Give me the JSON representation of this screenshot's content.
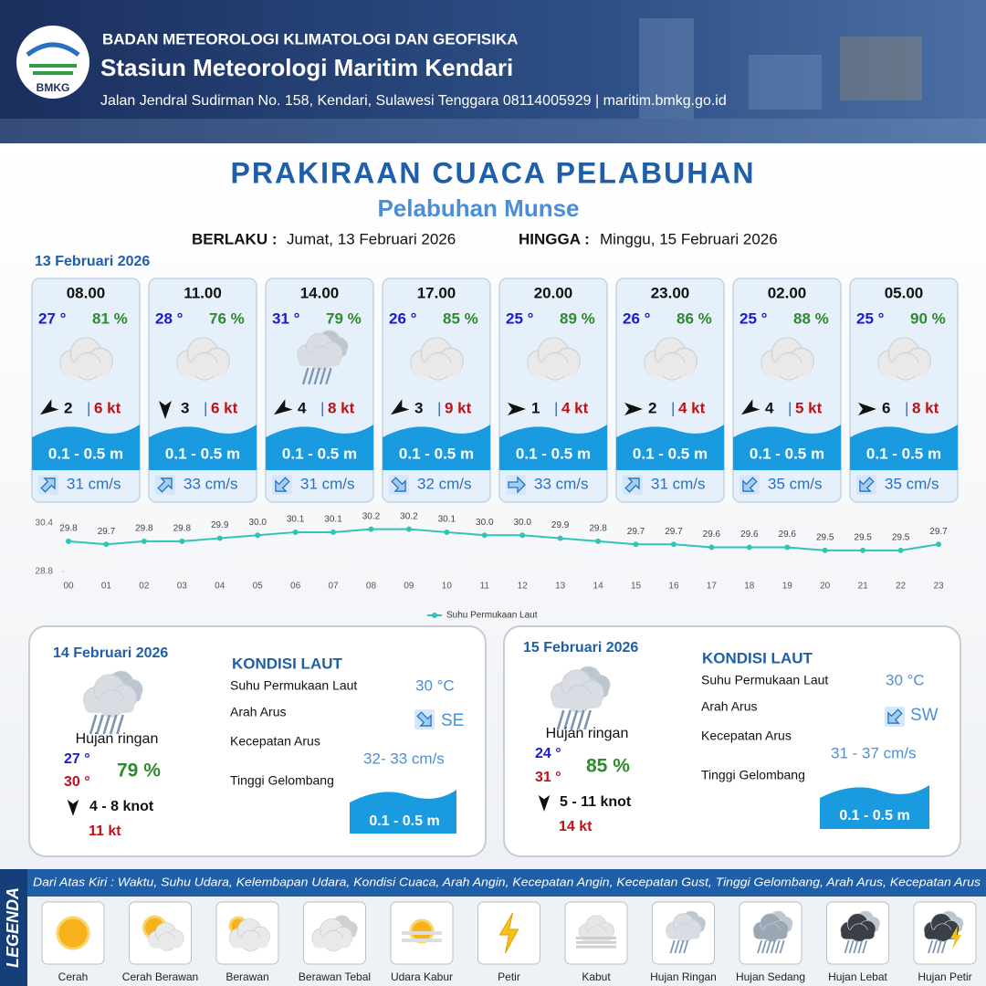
{
  "header": {
    "logo": "BMKG",
    "agency": "BADAN METEOROLOGI KLIMATOLOGI DAN GEOFISIKA",
    "station": "Stasiun Meteorologi Maritim Kendari",
    "address": "Jalan Jendral Sudirman No. 158, Kendari, Sulawesi Tenggara  08114005929 | maritim.bmkg.go.id"
  },
  "title": "PRAKIRAAN CUACA PELABUHAN",
  "subtitle": "Pelabuhan Munse",
  "validity": {
    "from_label": "BERLAKU :",
    "from": "Jumat, 13 Februari 2026",
    "to_label": "HINGGA :",
    "to": "Minggu, 15 Februari 2026"
  },
  "day1": {
    "date": "13 Februari 2026",
    "slots": [
      {
        "time": "08.00",
        "temp": "27 °",
        "humidity": "81 %",
        "wind": "2",
        "gust": "6 kt",
        "wave": "0.1 - 0.5 m",
        "current": "31 cm/s"
      },
      {
        "time": "11.00",
        "temp": "28 °",
        "humidity": "76 %",
        "wind": "3",
        "gust": "6 kt",
        "wave": "0.1 - 0.5 m",
        "current": "33 cm/s"
      },
      {
        "time": "14.00",
        "temp": "31 °",
        "humidity": "79 %",
        "wind": "4",
        "gust": "8 kt",
        "wave": "0.1 - 0.5 m",
        "current": "31 cm/s"
      },
      {
        "time": "17.00",
        "temp": "26 °",
        "humidity": "85 %",
        "wind": "3",
        "gust": "9 kt",
        "wave": "0.1 - 0.5 m",
        "current": "32 cm/s"
      },
      {
        "time": "20.00",
        "temp": "25 °",
        "humidity": "89 %",
        "wind": "1",
        "gust": "4 kt",
        "wave": "0.1 - 0.5 m",
        "current": "33 cm/s"
      },
      {
        "time": "23.00",
        "temp": "26 °",
        "humidity": "86 %",
        "wind": "2",
        "gust": "4 kt",
        "wave": "0.1 - 0.5 m",
        "current": "31 cm/s"
      },
      {
        "time": "02.00",
        "temp": "25 °",
        "humidity": "88 %",
        "wind": "4",
        "gust": "5 kt",
        "wave": "0.1 - 0.5 m",
        "current": "35 cm/s"
      },
      {
        "time": "05.00",
        "temp": "25 °",
        "humidity": "90 %",
        "wind": "6",
        "gust": "8 kt",
        "wave": "0.1 - 0.5 m",
        "current": "35 cm/s"
      }
    ]
  },
  "chart_data": {
    "type": "line",
    "categories": [
      "00",
      "01",
      "02",
      "03",
      "04",
      "05",
      "06",
      "07",
      "08",
      "09",
      "10",
      "11",
      "12",
      "13",
      "14",
      "15",
      "16",
      "17",
      "18",
      "19",
      "20",
      "21",
      "22",
      "23"
    ],
    "series": [
      {
        "name": "Suhu Permukaan Laut",
        "color": "#2ec4b6",
        "values": [
          29.8,
          29.7,
          29.8,
          29.8,
          29.9,
          30.0,
          30.1,
          30.1,
          30.2,
          30.2,
          30.1,
          30.0,
          30.0,
          29.9,
          29.8,
          29.7,
          29.7,
          29.6,
          29.6,
          29.6,
          29.5,
          29.5,
          29.5,
          29.7
        ],
        "value_labels": [
          "29.8",
          "29.7",
          "29.8",
          "29.8",
          "29.9",
          "30.0",
          "30.1",
          "30.1",
          "30.2",
          "30.2",
          "30.1",
          "30.0",
          "30.0",
          "29.9",
          "29.8",
          "29.7",
          "29.7",
          "29.6",
          "29.6",
          "29.6",
          "29.5",
          "29.5",
          "29.5",
          "29.7"
        ]
      }
    ],
    "ylim": [
      28.8,
      30.4
    ],
    "yticks": [
      28.8,
      30.4
    ]
  },
  "days": [
    {
      "date": "14 Februari 2026",
      "condition": "Hujan ringan",
      "temp_min": "27 °",
      "temp_max": "30 °",
      "humidity": "79 %",
      "wind": "4  - 8 knot",
      "gust": "11 kt",
      "sea": {
        "heading": "KONDISI LAUT",
        "sst_label": "Suhu Permukaan Laut",
        "sst": "30 °C",
        "dir_label": "Arah Arus",
        "dir": "SE",
        "speed_label": "Kecepatan Arus",
        "speed": "32- 33 cm/s",
        "wave_label": "Tinggi Gelombang",
        "wave": "0.1 - 0.5 m"
      }
    },
    {
      "date": "15 Februari 2026",
      "condition": "Hujan ringan",
      "temp_min": "24 °",
      "temp_max": "31 °",
      "humidity": "85 %",
      "wind": "5  - 11 knot",
      "gust": "14 kt",
      "sea": {
        "heading": "KONDISI LAUT",
        "sst_label": "Suhu Permukaan Laut",
        "sst": "30 °C",
        "dir_label": "Arah Arus",
        "dir": "SW",
        "speed_label": "Kecepatan Arus",
        "speed": "31 - 37 cm/s",
        "wave_label": "Tinggi Gelombang",
        "wave": "0.1 - 0.5 m"
      }
    }
  ],
  "legend": {
    "title": "LEGENDA",
    "description": "Dari Atas Kiri : Waktu, Suhu Udara, Kelembapan Udara, Kondisi Cuaca, Arah Angin, Kecepatan Angin, Kecepatan Gust, Tinggi Gelombang, Arah Arus, Kecepatan Arus",
    "items": [
      "Cerah",
      "Cerah Berawan",
      "Berawan",
      "Berawan Tebal",
      "Udara Kabur",
      "Petir",
      "Kabut",
      "Hujan Ringan",
      "Hujan Sedang",
      "Hujan Lebat",
      "Hujan Petir"
    ]
  }
}
